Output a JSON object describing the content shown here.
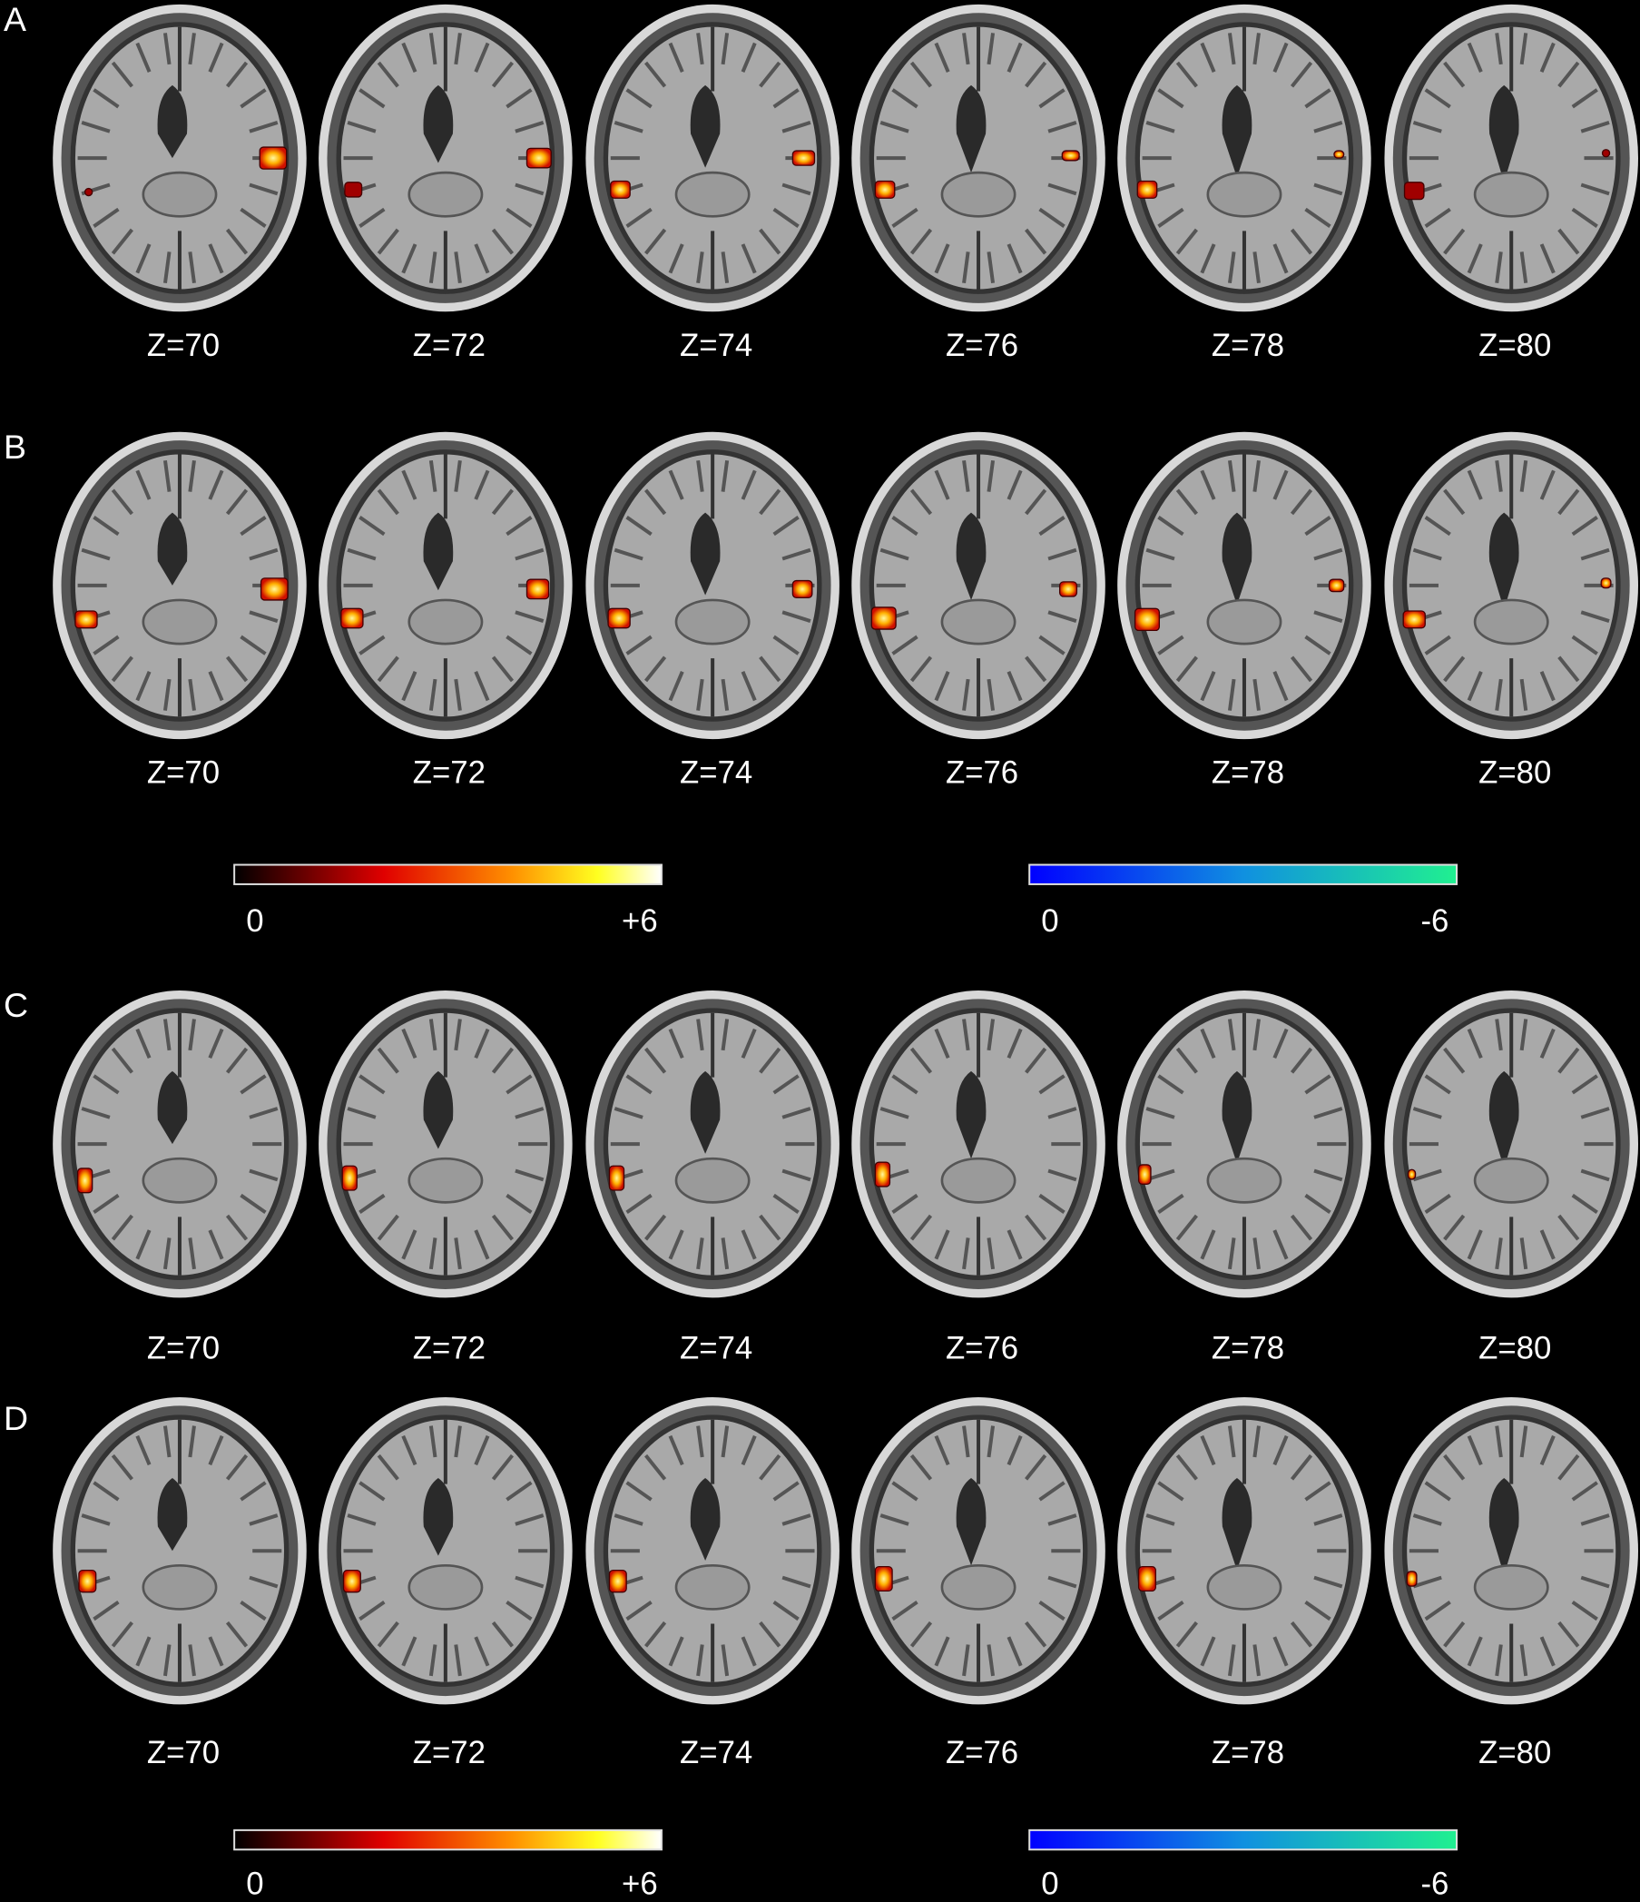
{
  "panels": [
    {
      "label": "A",
      "slices": [
        "Z=70",
        "Z=72",
        "Z=74",
        "Z=76",
        "Z=78",
        "Z=80"
      ]
    },
    {
      "label": "B",
      "slices": [
        "Z=70",
        "Z=72",
        "Z=74",
        "Z=76",
        "Z=78",
        "Z=80"
      ]
    },
    {
      "label": "C",
      "slices": [
        "Z=70",
        "Z=72",
        "Z=74",
        "Z=76",
        "Z=78",
        "Z=80"
      ]
    },
    {
      "label": "D",
      "slices": [
        "Z=70",
        "Z=72",
        "Z=74",
        "Z=76",
        "Z=78",
        "Z=80"
      ]
    }
  ],
  "colorbars": [
    [
      {
        "min_label": "0",
        "max_label": "+6"
      },
      {
        "min_label": "0",
        "max_label": "-6"
      }
    ],
    [
      {
        "min_label": "0",
        "max_label": "+6"
      },
      {
        "min_label": "0",
        "max_label": "-6"
      }
    ]
  ]
}
